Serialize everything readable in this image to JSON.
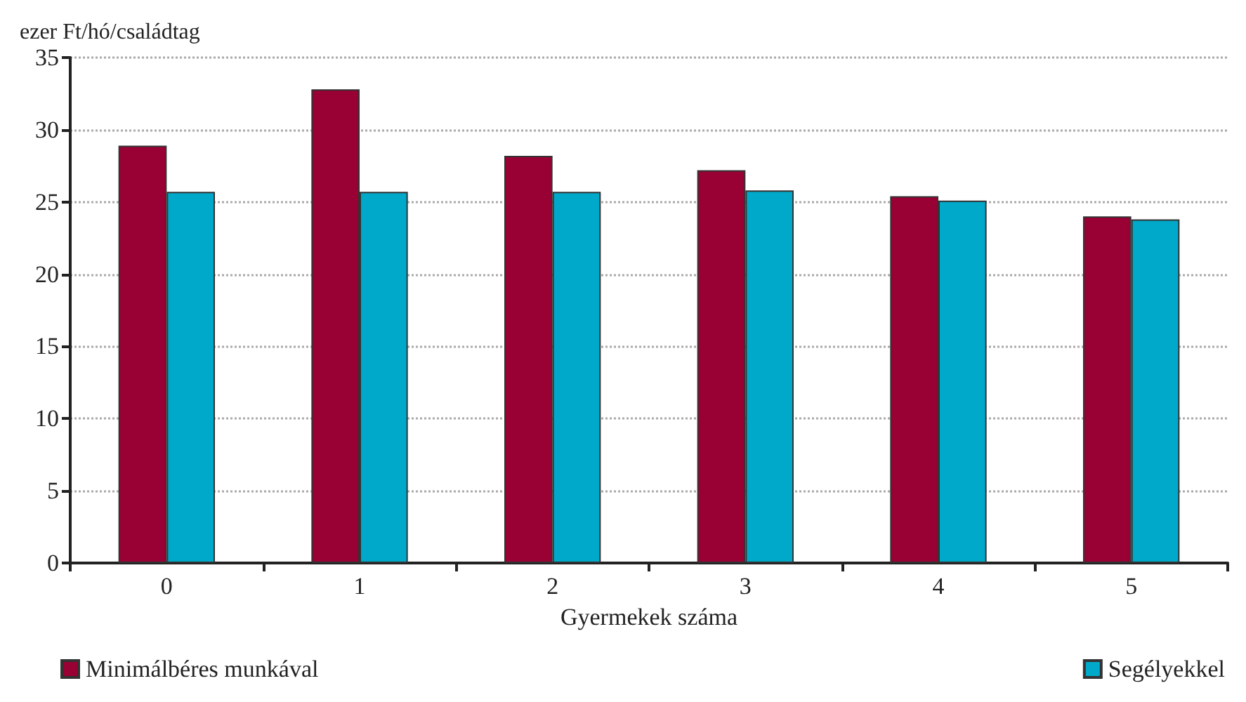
{
  "chart_data": {
    "type": "bar",
    "xlabel": "Gyermekek száma",
    "ylabel": "ezer Ft/hó/családtag",
    "categories": [
      "0",
      "1",
      "2",
      "3",
      "4",
      "5"
    ],
    "series": [
      {
        "name": "Minimálbéres munkával",
        "color": "#990033",
        "values": [
          28.9,
          32.8,
          28.2,
          27.2,
          25.4,
          24.0
        ]
      },
      {
        "name": "Segélyekkel",
        "color": "#00a9c9",
        "values": [
          25.7,
          25.7,
          25.7,
          25.8,
          25.1,
          23.8
        ]
      }
    ],
    "ylim": [
      0,
      35
    ],
    "yticks": [
      0,
      5,
      10,
      15,
      20,
      25,
      30,
      35
    ],
    "grid": "y",
    "legend": "bottom"
  }
}
